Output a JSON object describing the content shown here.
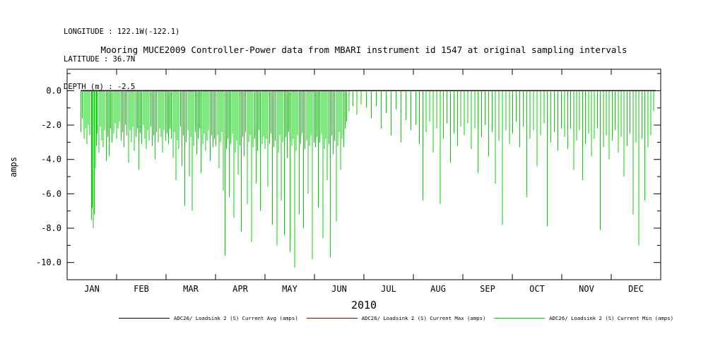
{
  "colors": {
    "avg": "#000000",
    "max": "#9e0000",
    "min": "#00d400",
    "axis": "#000000",
    "background": "#ffffff"
  },
  "header": {
    "lines": [
      "LONGITUDE : 122.1W(-122.1)",
      "LATITUDE : 36.7N",
      "DEPTH (m) : -2.5"
    ]
  },
  "chart_data": {
    "type": "line",
    "title": "Mooring MUCE2009 Controller-Power data from MBARI instrument id 1547 at original sampling intervals",
    "ylabel": "amps",
    "xlabel_year": "2010",
    "x_unit": "month of 2010",
    "xlim": [
      0,
      12
    ],
    "ylim": [
      -11,
      1.25
    ],
    "y_ticks": [
      0,
      -2,
      -4,
      -6,
      -8,
      -10
    ],
    "month_labels": [
      "JAN",
      "FEB",
      "MAR",
      "APR",
      "MAY",
      "JUN",
      "JUL",
      "AUG",
      "SEP",
      "OCT",
      "NOV",
      "DEC"
    ],
    "grid": false,
    "legend_position": "bottom",
    "series": [
      {
        "name": "ADC26/ Loadsink 2 (S) Current Avg (amps)",
        "color_key": "avg",
        "type": "flat",
        "value": 0,
        "x_start": 0.28,
        "x_end": 11.9
      },
      {
        "name": "ADC26/ Loadsink 2 (S) Current Max (amps)",
        "color_key": "max",
        "type": "flat",
        "value": 0,
        "x_start": 0.28,
        "x_end": 11.9
      },
      {
        "name": "ADC26/ Loadsink 2 (S) Current Min (amps)",
        "color_key": "min",
        "type": "spikes",
        "points": [
          [
            0.28,
            -2.4
          ],
          [
            0.31,
            -1.6
          ],
          [
            0.34,
            -2.8
          ],
          [
            0.37,
            -2.2
          ],
          [
            0.4,
            -3.1
          ],
          [
            0.43,
            -2.0
          ],
          [
            0.46,
            -2.6
          ],
          [
            0.49,
            -7.5
          ],
          [
            0.51,
            -6.8
          ],
          [
            0.53,
            -8.0
          ],
          [
            0.55,
            -7.2
          ],
          [
            0.57,
            -4.5
          ],
          [
            0.59,
            -3.2
          ],
          [
            0.61,
            -2.5
          ],
          [
            0.64,
            -3.6
          ],
          [
            0.67,
            -2.1
          ],
          [
            0.7,
            -2.9
          ],
          [
            0.73,
            -3.3
          ],
          [
            0.76,
            -2.3
          ],
          [
            0.79,
            -4.1
          ],
          [
            0.82,
            -2.7
          ],
          [
            0.85,
            -3.8
          ],
          [
            0.88,
            -2.2
          ],
          [
            0.91,
            -3.0
          ],
          [
            0.94,
            -2.5
          ],
          [
            0.97,
            -1.9
          ],
          [
            1.0,
            -2.8
          ],
          [
            1.03,
            -2.2
          ],
          [
            1.06,
            -1.8
          ],
          [
            1.09,
            -2.9
          ],
          [
            1.12,
            -2.4
          ],
          [
            1.15,
            -3.3
          ],
          [
            1.18,
            -2.0
          ],
          [
            1.21,
            -2.6
          ],
          [
            1.24,
            -4.2
          ],
          [
            1.27,
            -2.3
          ],
          [
            1.3,
            -3.0
          ],
          [
            1.33,
            -2.1
          ],
          [
            1.36,
            -3.5
          ],
          [
            1.39,
            -2.7
          ],
          [
            1.42,
            -2.2
          ],
          [
            1.45,
            -4.6
          ],
          [
            1.48,
            -2.5
          ],
          [
            1.51,
            -3.1
          ],
          [
            1.54,
            -2.0
          ],
          [
            1.57,
            -2.8
          ],
          [
            1.6,
            -3.4
          ],
          [
            1.63,
            -2.3
          ],
          [
            1.66,
            -2.9
          ],
          [
            1.69,
            -2.1
          ],
          [
            1.72,
            -3.2
          ],
          [
            1.75,
            -2.6
          ],
          [
            1.78,
            -4.0
          ],
          [
            1.81,
            -2.4
          ],
          [
            1.84,
            -3.0
          ],
          [
            1.87,
            -2.2
          ],
          [
            1.9,
            -2.7
          ],
          [
            1.93,
            -3.6
          ],
          [
            1.96,
            -2.3
          ],
          [
            1.99,
            -2.9
          ],
          [
            2.02,
            -2.5
          ],
          [
            2.05,
            -3.1
          ],
          [
            2.08,
            -2.2
          ],
          [
            2.11,
            -2.8
          ],
          [
            2.14,
            -3.9
          ],
          [
            2.17,
            -2.4
          ],
          [
            2.2,
            -5.2
          ],
          [
            2.23,
            -2.9
          ],
          [
            2.26,
            -3.4
          ],
          [
            2.29,
            -2.1
          ],
          [
            2.32,
            -4.4
          ],
          [
            2.35,
            -2.6
          ],
          [
            2.38,
            -6.7
          ],
          [
            2.41,
            -3.0
          ],
          [
            2.44,
            -2.3
          ],
          [
            2.47,
            -5.0
          ],
          [
            2.5,
            -2.7
          ],
          [
            2.53,
            -7.0
          ],
          [
            2.56,
            -3.2
          ],
          [
            2.59,
            -2.4
          ],
          [
            2.62,
            -3.7
          ],
          [
            2.65,
            -2.8
          ],
          [
            2.68,
            -2.2
          ],
          [
            2.71,
            -4.8
          ],
          [
            2.74,
            -3.1
          ],
          [
            2.77,
            -2.5
          ],
          [
            2.8,
            -3.5
          ],
          [
            2.83,
            -2.9
          ],
          [
            2.86,
            -2.3
          ],
          [
            2.89,
            -4.1
          ],
          [
            2.92,
            -2.6
          ],
          [
            2.95,
            -3.3
          ],
          [
            2.98,
            -2.8
          ],
          [
            3.01,
            -3.2
          ],
          [
            3.04,
            -2.6
          ],
          [
            3.07,
            -4.5
          ],
          [
            3.1,
            -3.0
          ],
          [
            3.13,
            -2.4
          ],
          [
            3.16,
            -5.8
          ],
          [
            3.19,
            -9.6
          ],
          [
            3.22,
            -3.4
          ],
          [
            3.25,
            -2.8
          ],
          [
            3.28,
            -6.2
          ],
          [
            3.31,
            -3.1
          ],
          [
            3.34,
            -2.5
          ],
          [
            3.37,
            -7.4
          ],
          [
            3.4,
            -3.6
          ],
          [
            3.43,
            -2.9
          ],
          [
            3.46,
            -4.9
          ],
          [
            3.49,
            -3.2
          ],
          [
            3.52,
            -8.2
          ],
          [
            3.55,
            -2.7
          ],
          [
            3.58,
            -3.8
          ],
          [
            3.61,
            -2.4
          ],
          [
            3.64,
            -6.6
          ],
          [
            3.67,
            -3.0
          ],
          [
            3.7,
            -2.6
          ],
          [
            3.73,
            -8.8
          ],
          [
            3.76,
            -3.3
          ],
          [
            3.79,
            -2.8
          ],
          [
            3.82,
            -5.4
          ],
          [
            3.85,
            -3.5
          ],
          [
            3.88,
            -2.3
          ],
          [
            3.91,
            -7.0
          ],
          [
            3.94,
            -3.1
          ],
          [
            3.97,
            -2.7
          ],
          [
            4.0,
            -3.4
          ],
          [
            4.03,
            -2.8
          ],
          [
            4.06,
            -5.6
          ],
          [
            4.09,
            -3.1
          ],
          [
            4.12,
            -2.5
          ],
          [
            4.15,
            -7.8
          ],
          [
            4.18,
            -3.3
          ],
          [
            4.21,
            -2.9
          ],
          [
            4.24,
            -9.0
          ],
          [
            4.27,
            -3.6
          ],
          [
            4.3,
            -2.6
          ],
          [
            4.33,
            -6.4
          ],
          [
            4.36,
            -3.0
          ],
          [
            4.39,
            -8.4
          ],
          [
            4.42,
            -2.7
          ],
          [
            4.45,
            -3.9
          ],
          [
            4.48,
            -2.4
          ],
          [
            4.51,
            -9.4
          ],
          [
            4.54,
            -3.2
          ],
          [
            4.57,
            -2.8
          ],
          [
            4.6,
            -10.3
          ],
          [
            4.63,
            -3.5
          ],
          [
            4.66,
            -2.6
          ],
          [
            4.69,
            -7.2
          ],
          [
            4.72,
            -3.1
          ],
          [
            4.75,
            -2.5
          ],
          [
            4.78,
            -8.0
          ],
          [
            4.81,
            -3.4
          ],
          [
            4.84,
            -2.9
          ],
          [
            4.87,
            -6.0
          ],
          [
            4.9,
            -3.2
          ],
          [
            4.93,
            -2.6
          ],
          [
            4.96,
            -9.8
          ],
          [
            4.99,
            -3.0
          ],
          [
            5.02,
            -3.3
          ],
          [
            5.05,
            -2.7
          ],
          [
            5.08,
            -6.8
          ],
          [
            5.11,
            -3.0
          ],
          [
            5.14,
            -2.5
          ],
          [
            5.17,
            -8.6
          ],
          [
            5.2,
            -3.4
          ],
          [
            5.23,
            -2.8
          ],
          [
            5.26,
            -5.2
          ],
          [
            5.29,
            -3.1
          ],
          [
            5.32,
            -9.7
          ],
          [
            5.35,
            -2.6
          ],
          [
            5.38,
            -3.7
          ],
          [
            5.41,
            -2.9
          ],
          [
            5.44,
            -7.6
          ],
          [
            5.47,
            -3.2
          ],
          [
            5.5,
            -2.4
          ],
          [
            5.53,
            -4.6
          ],
          [
            5.56,
            -2.8
          ],
          [
            5.59,
            -3.3
          ],
          [
            5.62,
            -2.2
          ],
          [
            5.65,
            -1.8
          ],
          [
            5.7,
            -1.2
          ],
          [
            5.78,
            -0.9
          ],
          [
            5.86,
            -1.4
          ],
          [
            5.94,
            -0.8
          ],
          [
            6.05,
            -1.0
          ],
          [
            6.15,
            -1.6
          ],
          [
            6.25,
            -0.9
          ],
          [
            6.35,
            -2.2
          ],
          [
            6.45,
            -1.3
          ],
          [
            6.55,
            -2.6
          ],
          [
            6.65,
            -1.1
          ],
          [
            6.75,
            -3.0
          ],
          [
            6.85,
            -1.7
          ],
          [
            6.95,
            -2.3
          ],
          [
            7.05,
            -2.0
          ],
          [
            7.12,
            -3.1
          ],
          [
            7.19,
            -6.4
          ],
          [
            7.26,
            -2.4
          ],
          [
            7.33,
            -1.8
          ],
          [
            7.4,
            -3.6
          ],
          [
            7.47,
            -2.2
          ],
          [
            7.54,
            -6.6
          ],
          [
            7.61,
            -2.8
          ],
          [
            7.68,
            -1.9
          ],
          [
            7.75,
            -4.2
          ],
          [
            7.82,
            -2.5
          ],
          [
            7.89,
            -3.2
          ],
          [
            7.96,
            -2.1
          ],
          [
            8.03,
            -2.6
          ],
          [
            8.1,
            -1.9
          ],
          [
            8.17,
            -3.4
          ],
          [
            8.24,
            -2.2
          ],
          [
            8.31,
            -4.8
          ],
          [
            8.38,
            -2.7
          ],
          [
            8.45,
            -2.0
          ],
          [
            8.52,
            -3.8
          ],
          [
            8.59,
            -2.4
          ],
          [
            8.66,
            -5.4
          ],
          [
            8.73,
            -2.9
          ],
          [
            8.8,
            -7.8
          ],
          [
            8.87,
            -2.3
          ],
          [
            8.94,
            -3.1
          ],
          [
            9.01,
            -2.5
          ],
          [
            9.08,
            -1.8
          ],
          [
            9.15,
            -3.3
          ],
          [
            9.22,
            -2.1
          ],
          [
            9.29,
            -6.2
          ],
          [
            9.36,
            -2.8
          ],
          [
            9.43,
            -2.3
          ],
          [
            9.5,
            -4.4
          ],
          [
            9.57,
            -2.6
          ],
          [
            9.64,
            -1.9
          ],
          [
            9.71,
            -7.9
          ],
          [
            9.78,
            -3.0
          ],
          [
            9.85,
            -2.4
          ],
          [
            9.92,
            -3.5
          ],
          [
            9.99,
            -2.2
          ],
          [
            10.06,
            -2.7
          ],
          [
            10.12,
            -3.4
          ],
          [
            10.18,
            -2.2
          ],
          [
            10.24,
            -4.6
          ],
          [
            10.3,
            -2.9
          ],
          [
            10.36,
            -2.3
          ],
          [
            10.42,
            -5.2
          ],
          [
            10.48,
            -3.1
          ],
          [
            10.54,
            -2.5
          ],
          [
            10.6,
            -3.8
          ],
          [
            10.66,
            -2.8
          ],
          [
            10.72,
            -2.2
          ],
          [
            10.78,
            -8.1
          ],
          [
            10.84,
            -3.3
          ],
          [
            10.9,
            -2.6
          ],
          [
            10.96,
            -4.0
          ],
          [
            11.02,
            -2.9
          ],
          [
            11.08,
            -2.3
          ],
          [
            11.14,
            -3.6
          ],
          [
            11.2,
            -2.7
          ],
          [
            11.26,
            -5.0
          ],
          [
            11.32,
            -3.2
          ],
          [
            11.38,
            -2.5
          ],
          [
            11.44,
            -7.2
          ],
          [
            11.5,
            -3.0
          ],
          [
            11.56,
            -9.0
          ],
          [
            11.62,
            -2.8
          ],
          [
            11.68,
            -6.4
          ],
          [
            11.74,
            -3.3
          ],
          [
            11.8,
            -2.6
          ],
          [
            11.86,
            -1.2
          ]
        ]
      }
    ]
  }
}
